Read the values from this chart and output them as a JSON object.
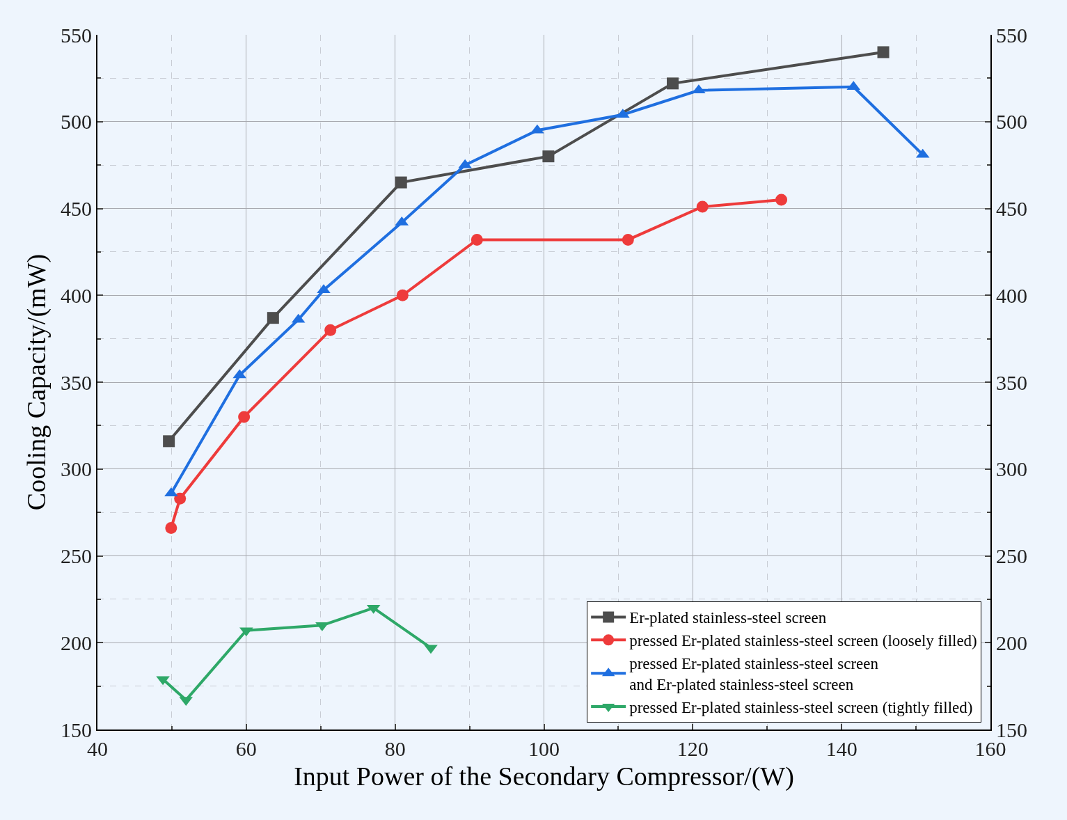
{
  "chart_data": {
    "type": "line",
    "xlabel": "Input Power of the Secondary Compressor/(W)",
    "ylabel": "Cooling Capacity/(mW)",
    "xlim": [
      40,
      160
    ],
    "xticks": [
      40,
      60,
      80,
      100,
      120,
      140,
      160
    ],
    "ylim": [
      150,
      550
    ],
    "yticks": [
      150,
      200,
      250,
      300,
      350,
      400,
      450,
      500,
      550
    ],
    "y2lim": [
      150,
      550
    ],
    "y2ticks": [
      150,
      200,
      250,
      300,
      350,
      400,
      450,
      500,
      550
    ],
    "grid": true,
    "legend": "bottom right",
    "series": [
      {
        "name": "Er-plated stainless-steel screen",
        "color": "#4d4d4d",
        "marker": "square",
        "x": [
          49.6,
          63.6,
          80.8,
          100.6,
          117.3,
          145.6
        ],
        "values": [
          316,
          387,
          465,
          480,
          522,
          540
        ]
      },
      {
        "name": "pressed Er-plated stainless-steel screen (loosely filled)",
        "color": "#ee3b3b",
        "marker": "circle",
        "x": [
          49.9,
          51.1,
          59.7,
          71.3,
          81.0,
          91.0,
          111.3,
          121.3,
          131.9
        ],
        "values": [
          266,
          283,
          330,
          380,
          400,
          432,
          432,
          451,
          455
        ]
      },
      {
        "name": "pressed Er-plated stainless-steel screen\nand Er-plated stainless-steel screen",
        "color": "#1f6fe0",
        "marker": "triangle",
        "x": [
          49.9,
          59.1,
          67.0,
          70.4,
          80.9,
          89.4,
          99.1,
          110.6,
          120.8,
          141.6,
          150.9
        ],
        "values": [
          286,
          354,
          386,
          403,
          442,
          475,
          495,
          504,
          518,
          520,
          481
        ]
      },
      {
        "name": "pressed Er-plated stainless-steel screen (tightly filled)",
        "color": "#2ea868",
        "marker": "triangle-down",
        "x": [
          48.8,
          51.9,
          60.0,
          70.2,
          77.1,
          84.8
        ],
        "values": [
          179,
          167,
          207,
          210,
          220,
          197
        ]
      }
    ]
  }
}
